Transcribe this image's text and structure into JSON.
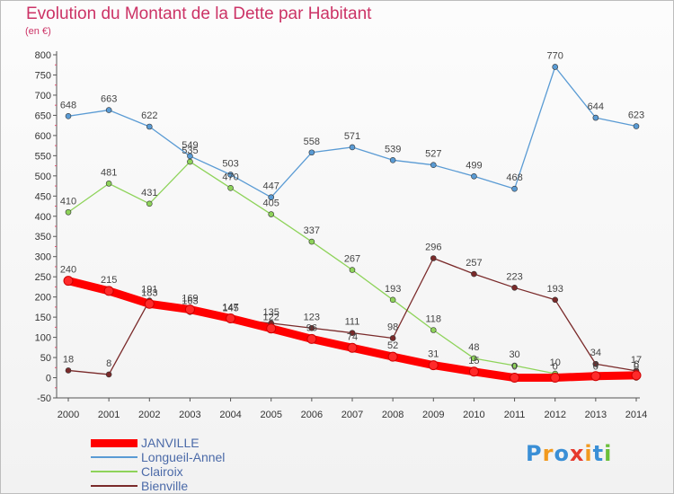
{
  "title": "Evolution du Montant de la Dette par Habitant",
  "unit": "(en €)",
  "logo": {
    "text": "Proxiti",
    "colors": [
      "#3a8fd6",
      "#f29a1f",
      "#3a8fd6",
      "#e63a2e",
      "#f29a1f",
      "#3a8fd6",
      "#6bbf3a"
    ]
  },
  "chart_data": {
    "type": "line",
    "title": "Evolution du Montant de la Dette par Habitant",
    "ylabel": "(en €)",
    "xlabel": "",
    "x": [
      "2000",
      "2001",
      "2002",
      "2003",
      "2004",
      "2005",
      "2006",
      "2007",
      "2008",
      "2009",
      "2010",
      "2011",
      "2012",
      "2013",
      "2014"
    ],
    "ylim": [
      -50,
      800
    ],
    "yticks": [
      -50,
      0,
      50,
      100,
      150,
      200,
      250,
      300,
      350,
      400,
      450,
      500,
      550,
      600,
      650,
      700,
      750,
      800
    ],
    "grid": false,
    "legend_position": "bottom-left",
    "series": [
      {
        "name": "JANVILLE",
        "color": "#ff0000",
        "values": [
          240,
          215,
          183,
          169,
          147,
          122,
          96,
          74,
          52,
          31,
          15,
          0,
          0,
          4,
          6
        ],
        "labels": [
          "240",
          "215",
          "183",
          "169",
          "147",
          "122",
          "96",
          "74",
          "52",
          "31",
          "15",
          "0",
          "0",
          "4",
          "6"
        ]
      },
      {
        "name": "Longueil-Annel",
        "color": "#5a9bd4",
        "values": [
          648,
          663,
          622,
          549,
          503,
          447,
          558,
          571,
          539,
          527,
          499,
          468,
          770,
          644,
          623
        ],
        "labels": [
          "648",
          "663",
          "622",
          "549",
          "503",
          "447",
          "558",
          "571",
          "539",
          "527",
          "499",
          "468",
          "770",
          "644",
          "623"
        ]
      },
      {
        "name": "Clairoix",
        "color": "#8ed35a",
        "values": [
          410,
          481,
          431,
          535,
          470,
          405,
          337,
          267,
          193,
          118,
          48,
          30,
          10,
          0,
          0
        ],
        "labels": [
          "410",
          "481",
          "431",
          "535",
          "470",
          "405",
          "337",
          "267",
          "193",
          "118",
          "48",
          "30",
          "10",
          "0",
          "0"
        ]
      },
      {
        "name": "Bienville",
        "color": "#7a2a2a",
        "values": [
          18,
          8,
          191,
          163,
          145,
          135,
          123,
          111,
          98,
          296,
          257,
          223,
          193,
          34,
          17
        ],
        "labels": [
          "18",
          "8",
          "191",
          "163",
          "145",
          "135",
          "123",
          "111",
          "98",
          "296",
          "257",
          "223",
          "193",
          "34",
          "17"
        ]
      }
    ]
  }
}
